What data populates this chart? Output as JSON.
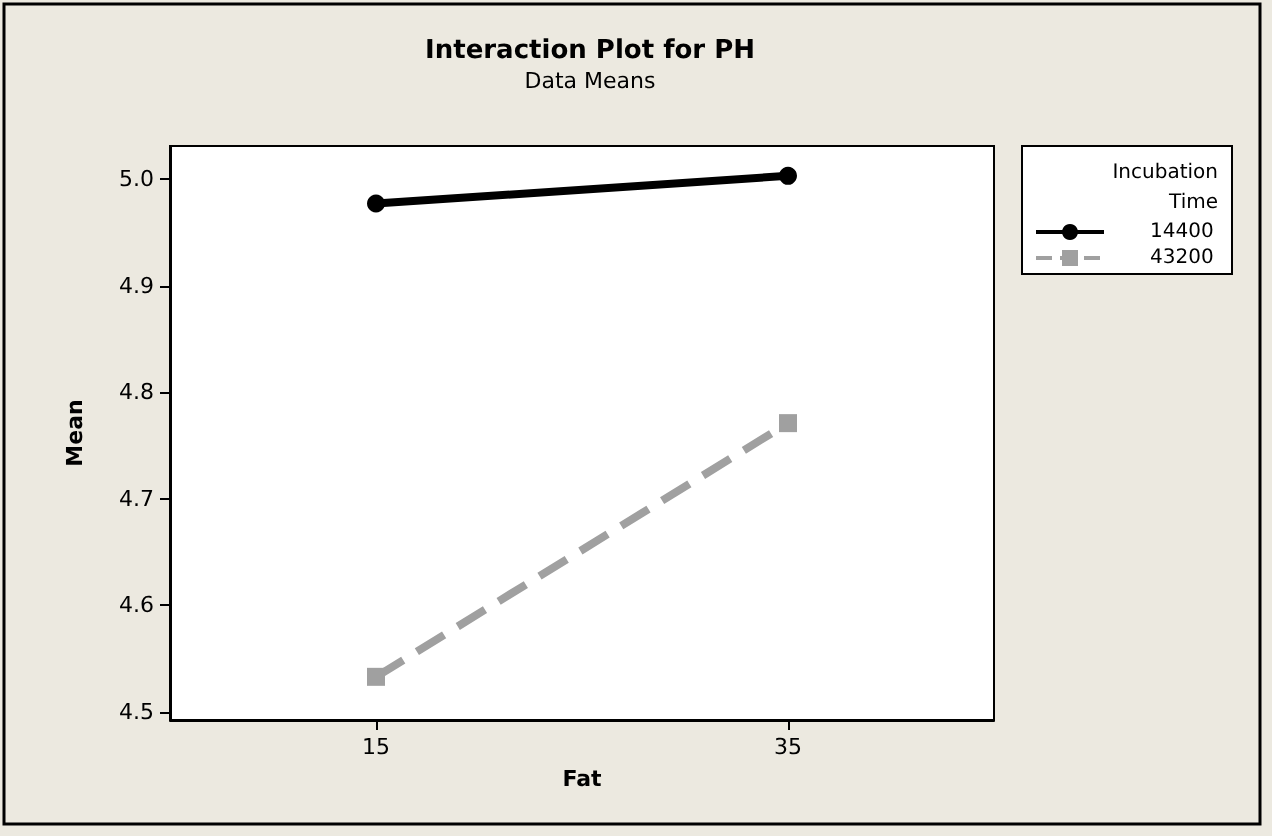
{
  "chart_data": {
    "type": "line",
    "title": "Interaction Plot for PH",
    "subtitle": "Data Means",
    "xlabel": "Fat",
    "ylabel": "Mean",
    "legend_title": "Incubation\nTime",
    "x": [
      15,
      35
    ],
    "series": [
      {
        "name": "14400",
        "color": "#000000",
        "values": [
          4.977,
          5.003
        ],
        "marker": "circle",
        "line_style": "solid"
      },
      {
        "name": "43200",
        "color": "#a0a0a0",
        "values": [
          4.533,
          4.771
        ],
        "marker": "square",
        "line_style": "dashed"
      }
    ],
    "xlim": [
      5,
      45
    ],
    "xticks": [
      15,
      35
    ],
    "ylim": [
      4.4925,
      5.031
    ],
    "yticks": [
      4.5,
      4.6,
      4.7,
      4.8,
      4.9,
      {
        "value": 5,
        "label": "5.0"
      }
    ],
    "grid": false,
    "legend": "right"
  }
}
